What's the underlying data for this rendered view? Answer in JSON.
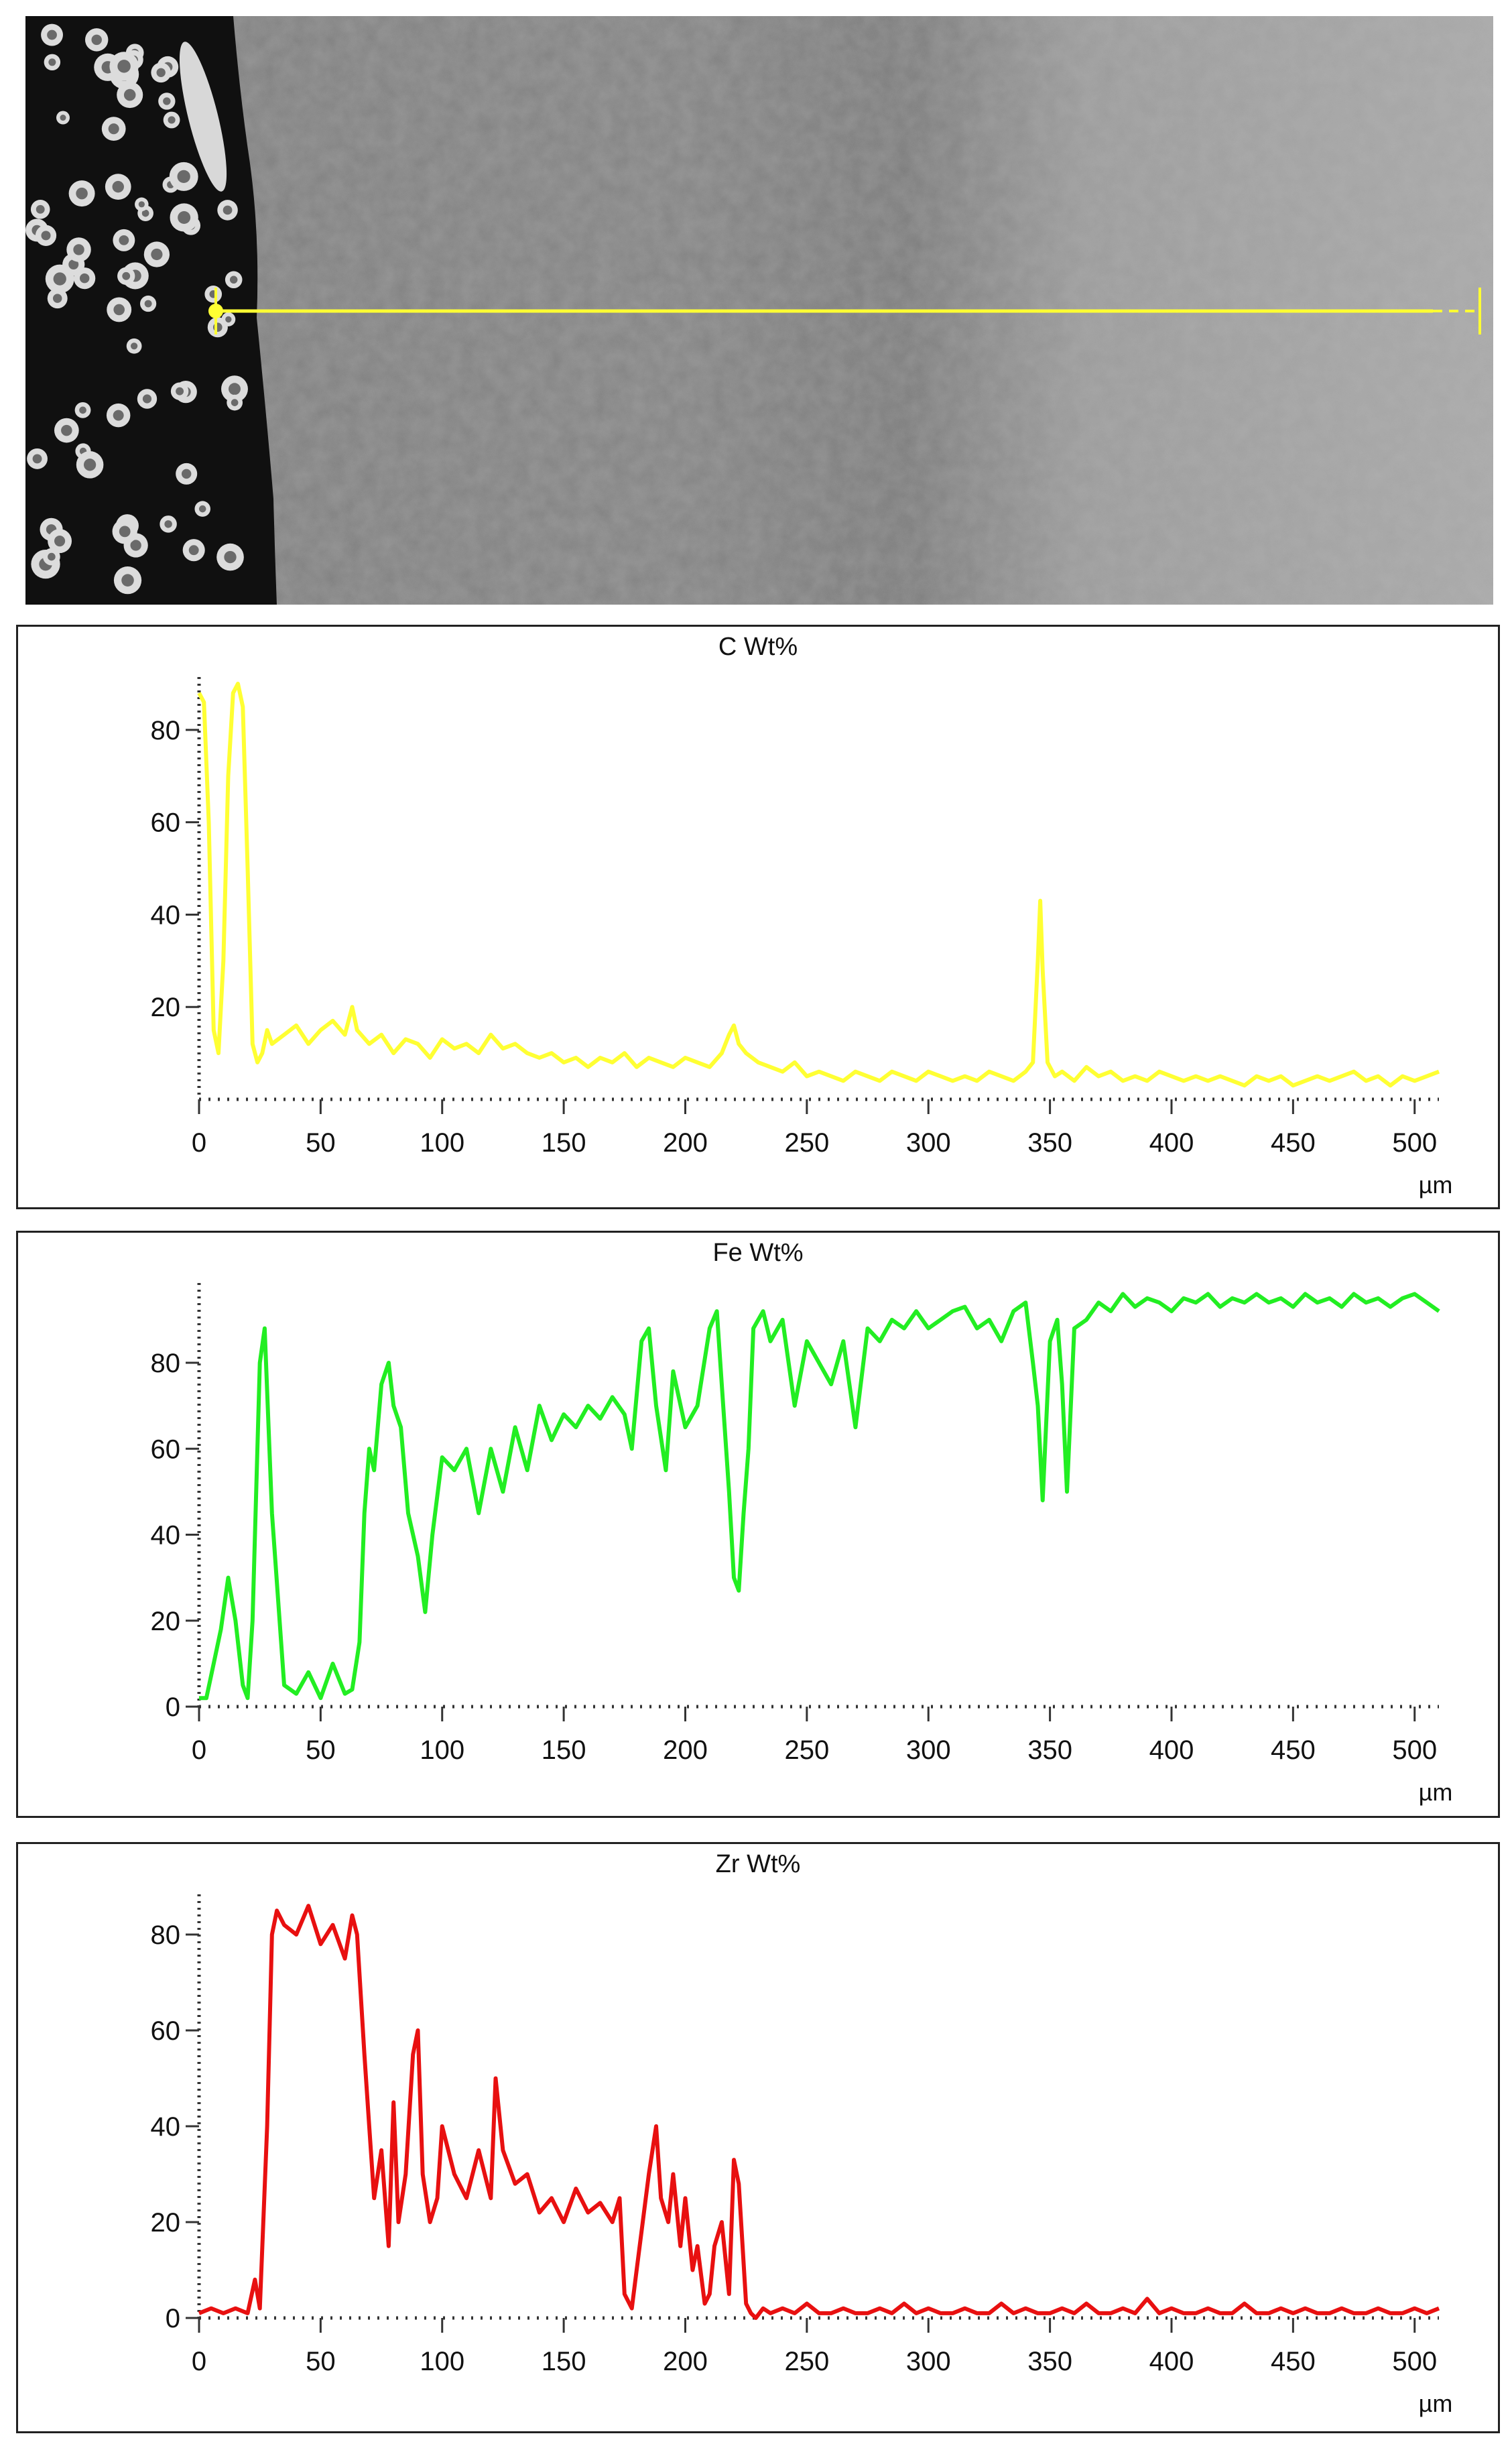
{
  "image": {
    "scan_line": {
      "color": "#ffff33"
    }
  },
  "chart_data": [
    {
      "type": "line",
      "title": "C Wt%",
      "xlabel": "µm",
      "color": "#ffff33",
      "xlim": [
        0,
        510
      ],
      "ylim": [
        0,
        90
      ],
      "xticks": [
        "0",
        "50",
        "100",
        "150",
        "200",
        "250",
        "300",
        "350",
        "400",
        "450",
        "500"
      ],
      "yticks": [
        "20",
        "40",
        "60",
        "80"
      ],
      "series": [
        {
          "x": [
            0,
            2,
            4,
            6,
            8,
            10,
            12,
            14,
            16,
            18,
            20,
            22,
            24,
            26,
            28,
            30,
            35,
            40,
            45,
            50,
            55,
            60,
            63,
            65,
            70,
            75,
            80,
            85,
            90,
            95,
            100,
            105,
            110,
            115,
            120,
            125,
            130,
            135,
            140,
            145,
            150,
            155,
            160,
            165,
            170,
            175,
            180,
            185,
            190,
            195,
            200,
            205,
            210,
            215,
            218,
            220,
            222,
            225,
            230,
            235,
            240,
            245,
            250,
            255,
            260,
            265,
            270,
            275,
            280,
            285,
            290,
            295,
            300,
            305,
            310,
            315,
            320,
            325,
            330,
            335,
            340,
            343,
            345,
            346,
            347,
            349,
            352,
            355,
            360,
            365,
            370,
            375,
            380,
            385,
            390,
            395,
            400,
            405,
            410,
            415,
            420,
            425,
            430,
            435,
            440,
            445,
            450,
            455,
            460,
            465,
            470,
            475,
            480,
            485,
            490,
            495,
            500,
            505,
            510
          ],
          "values": [
            88,
            86,
            60,
            15,
            10,
            30,
            70,
            88,
            90,
            85,
            50,
            12,
            8,
            10,
            15,
            12,
            14,
            16,
            12,
            15,
            17,
            14,
            20,
            15,
            12,
            14,
            10,
            13,
            12,
            9,
            13,
            11,
            12,
            10,
            14,
            11,
            12,
            10,
            9,
            10,
            8,
            9,
            7,
            9,
            8,
            10,
            7,
            9,
            8,
            7,
            9,
            8,
            7,
            10,
            14,
            16,
            12,
            10,
            8,
            7,
            6,
            8,
            5,
            6,
            5,
            4,
            6,
            5,
            4,
            6,
            5,
            4,
            6,
            5,
            4,
            5,
            4,
            6,
            5,
            4,
            6,
            8,
            30,
            43,
            28,
            8,
            5,
            6,
            4,
            7,
            5,
            6,
            4,
            5,
            4,
            6,
            5,
            4,
            5,
            4,
            5,
            4,
            3,
            5,
            4,
            5,
            3,
            4,
            5,
            4,
            5,
            6,
            4,
            5,
            3,
            5,
            4,
            5,
            6
          ]
        }
      ]
    },
    {
      "type": "line",
      "title": "Fe Wt%",
      "xlabel": "µm",
      "color": "#22ee22",
      "xlim": [
        0,
        510
      ],
      "ylim": [
        0,
        97
      ],
      "xticks": [
        "0",
        "50",
        "100",
        "150",
        "200",
        "250",
        "300",
        "350",
        "400",
        "450",
        "500"
      ],
      "yticks": [
        "0",
        "20",
        "40",
        "60",
        "80"
      ],
      "series": [
        {
          "x": [
            0,
            3,
            6,
            9,
            12,
            15,
            18,
            20,
            22,
            25,
            27,
            30,
            35,
            40,
            45,
            50,
            55,
            60,
            63,
            66,
            68,
            70,
            72,
            75,
            78,
            80,
            83,
            86,
            90,
            93,
            96,
            100,
            105,
            110,
            115,
            120,
            125,
            130,
            135,
            140,
            145,
            150,
            155,
            160,
            165,
            170,
            175,
            178,
            182,
            185,
            188,
            192,
            195,
            200,
            205,
            210,
            213,
            215,
            218,
            220,
            222,
            224,
            226,
            228,
            232,
            235,
            240,
            245,
            250,
            255,
            260,
            265,
            270,
            275,
            280,
            285,
            290,
            295,
            300,
            305,
            310,
            315,
            320,
            325,
            330,
            335,
            340,
            343,
            345,
            347,
            350,
            353,
            355,
            357,
            360,
            365,
            370,
            375,
            380,
            385,
            390,
            395,
            400,
            405,
            410,
            415,
            420,
            425,
            430,
            435,
            440,
            445,
            450,
            455,
            460,
            465,
            470,
            475,
            480,
            485,
            490,
            495,
            500,
            505,
            510
          ],
          "values": [
            2,
            2,
            10,
            18,
            30,
            20,
            5,
            2,
            20,
            80,
            88,
            45,
            5,
            3,
            8,
            2,
            10,
            3,
            4,
            15,
            45,
            60,
            55,
            75,
            80,
            70,
            65,
            45,
            35,
            22,
            40,
            58,
            55,
            60,
            45,
            60,
            50,
            65,
            55,
            70,
            62,
            68,
            65,
            70,
            67,
            72,
            68,
            60,
            85,
            88,
            70,
            55,
            78,
            65,
            70,
            88,
            92,
            75,
            50,
            30,
            27,
            45,
            60,
            88,
            92,
            85,
            90,
            70,
            85,
            80,
            75,
            85,
            65,
            88,
            85,
            90,
            88,
            92,
            88,
            90,
            92,
            93,
            88,
            90,
            85,
            92,
            94,
            80,
            70,
            48,
            85,
            90,
            75,
            50,
            88,
            90,
            94,
            92,
            96,
            93,
            95,
            94,
            92,
            95,
            94,
            96,
            93,
            95,
            94,
            96,
            94,
            95,
            93,
            96,
            94,
            95,
            93,
            96,
            94,
            95,
            93,
            95,
            96,
            94,
            92
          ]
        }
      ]
    },
    {
      "type": "line",
      "title": "Zr Wt%",
      "xlabel": "µm",
      "color": "#e81010",
      "xlim": [
        0,
        510
      ],
      "ylim": [
        0,
        87
      ],
      "xticks": [
        "0",
        "50",
        "100",
        "150",
        "200",
        "250",
        "300",
        "350",
        "400",
        "450",
        "500"
      ],
      "yticks": [
        "0",
        "20",
        "40",
        "60",
        "80"
      ],
      "series": [
        {
          "x": [
            0,
            5,
            10,
            15,
            20,
            23,
            25,
            28,
            30,
            32,
            35,
            40,
            45,
            50,
            55,
            60,
            63,
            65,
            68,
            70,
            72,
            75,
            78,
            80,
            82,
            85,
            88,
            90,
            92,
            95,
            98,
            100,
            105,
            110,
            115,
            120,
            122,
            125,
            130,
            135,
            140,
            145,
            150,
            155,
            160,
            165,
            170,
            173,
            175,
            178,
            180,
            185,
            188,
            190,
            193,
            195,
            198,
            200,
            203,
            205,
            208,
            210,
            212,
            215,
            218,
            220,
            222,
            225,
            227,
            229,
            232,
            235,
            240,
            245,
            250,
            255,
            260,
            265,
            270,
            275,
            280,
            285,
            290,
            295,
            300,
            305,
            310,
            315,
            320,
            325,
            330,
            335,
            340,
            345,
            350,
            355,
            360,
            365,
            370,
            375,
            380,
            385,
            390,
            395,
            400,
            405,
            410,
            415,
            420,
            425,
            430,
            435,
            440,
            445,
            450,
            455,
            460,
            465,
            470,
            475,
            480,
            485,
            490,
            495,
            500,
            505,
            510
          ],
          "values": [
            1,
            2,
            1,
            2,
            1,
            8,
            2,
            40,
            80,
            85,
            82,
            80,
            86,
            78,
            82,
            75,
            84,
            80,
            55,
            40,
            25,
            35,
            15,
            45,
            20,
            30,
            55,
            60,
            30,
            20,
            25,
            40,
            30,
            25,
            35,
            25,
            50,
            35,
            28,
            30,
            22,
            25,
            20,
            27,
            22,
            24,
            20,
            25,
            5,
            2,
            10,
            30,
            40,
            25,
            20,
            30,
            15,
            25,
            10,
            15,
            3,
            5,
            15,
            20,
            5,
            33,
            28,
            3,
            1,
            0,
            2,
            1,
            2,
            1,
            3,
            1,
            1,
            2,
            1,
            1,
            2,
            1,
            3,
            1,
            2,
            1,
            1,
            2,
            1,
            1,
            3,
            1,
            2,
            1,
            1,
            2,
            1,
            3,
            1,
            1,
            2,
            1,
            4,
            1,
            2,
            1,
            1,
            2,
            1,
            1,
            3,
            1,
            1,
            2,
            1,
            2,
            1,
            1,
            2,
            1,
            1,
            2,
            1,
            1,
            2,
            1,
            2
          ]
        }
      ]
    }
  ]
}
